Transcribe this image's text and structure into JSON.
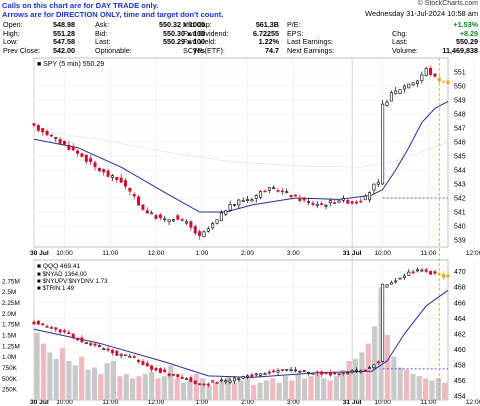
{
  "note": {
    "line1": "Calls on this chart are for DAY TRADE only.",
    "line2": "Arrows are for DIRECTION ONLY, time and target don't count."
  },
  "brand": "© StockCharts.com",
  "datetime": "Wednesday 31-Jul-2024 10:58 am",
  "quote": {
    "col1": [
      [
        "Open:",
        "548.98"
      ],
      [
        "High:",
        "551.28"
      ],
      [
        "Low:",
        "547.58"
      ],
      [
        "Prev Close:",
        "542.00"
      ]
    ],
    "col2": [
      [
        "Ask:",
        "550.32 x 1000"
      ],
      [
        "Bid:",
        "550.30 x 100"
      ],
      [
        "Last:",
        "550.29 x 100"
      ],
      [
        "Optionable:",
        "yes"
      ]
    ],
    "col3": [
      [
        "Mkt Cap:",
        "561.3B"
      ],
      [
        "Fwd Dividend:",
        "6.72255"
      ],
      [
        "Fwd Yield:",
        "1.22%"
      ],
      [
        "SCTR (ETF):",
        "74.7"
      ]
    ],
    "col4": [
      [
        "P/E:",
        ""
      ],
      [
        "EPS:",
        ""
      ],
      [
        "Last Earnings:",
        ""
      ],
      [
        "Next Earnings:",
        ""
      ]
    ],
    "col5": [
      [
        "",
        "+1.53%"
      ],
      [
        "Chg:",
        "+8.29"
      ],
      [
        "Last:",
        "550.29"
      ],
      [
        "Volume:",
        "11,469,838"
      ]
    ]
  },
  "chart_data": [
    {
      "type": "line",
      "title": "SPY (5 min) 550.29",
      "ylim": [
        538.5,
        552
      ],
      "yticks": [
        539,
        540,
        541,
        542,
        543,
        544,
        545,
        546,
        547,
        548,
        549,
        550,
        551
      ],
      "x_labels": [
        "30 Jul",
        "10:00",
        "11:00",
        "12:00",
        "1:00",
        "2:00",
        "3:00",
        "31 Jul",
        "10:00",
        "11:00",
        "12:00",
        "1:00",
        "2:00",
        "3:00"
      ],
      "prev_close": 542.0,
      "price_path": [
        [
          0,
          547.2
        ],
        [
          6,
          546.8
        ],
        [
          12,
          546.2
        ],
        [
          18,
          545.6
        ],
        [
          24,
          545.0
        ],
        [
          30,
          544.2
        ],
        [
          36,
          543.6
        ],
        [
          42,
          543.2
        ],
        [
          45,
          542.6
        ],
        [
          48,
          542.0
        ],
        [
          52,
          541.2
        ],
        [
          56,
          540.8
        ],
        [
          62,
          540.4
        ],
        [
          66,
          540.6
        ],
        [
          72,
          540.2
        ],
        [
          78,
          539.2
        ],
        [
          82,
          539.8
        ],
        [
          86,
          540.4
        ],
        [
          90,
          541.2
        ],
        [
          96,
          541.8
        ],
        [
          102,
          542.0
        ],
        [
          108,
          542.6
        ],
        [
          114,
          542.6
        ],
        [
          120,
          542.2
        ],
        [
          126,
          541.8
        ],
        [
          130,
          541.6
        ],
        [
          136,
          541.6
        ],
        [
          142,
          541.9
        ],
        [
          148,
          541.7
        ],
        [
          154,
          542.0
        ],
        [
          158,
          542.9
        ],
        [
          160,
          543.0
        ],
        [
          162,
          548.6
        ],
        [
          166,
          549.4
        ],
        [
          170,
          549.8
        ],
        [
          174,
          550.2
        ],
        [
          178,
          550.4
        ],
        [
          182,
          551.2
        ],
        [
          186,
          550.6
        ],
        [
          190,
          550.3
        ]
      ],
      "ma_fast": [
        [
          0,
          546.2
        ],
        [
          20,
          545.6
        ],
        [
          40,
          544.2
        ],
        [
          60,
          542.4
        ],
        [
          76,
          541.0
        ],
        [
          88,
          541.0
        ],
        [
          100,
          541.5
        ],
        [
          120,
          542.0
        ],
        [
          140,
          541.9
        ],
        [
          155,
          542.2
        ],
        [
          160,
          542.6
        ],
        [
          166,
          544.0
        ],
        [
          172,
          545.6
        ],
        [
          178,
          547.4
        ],
        [
          184,
          548.4
        ],
        [
          190,
          548.9
        ]
      ],
      "ma_slow": [
        [
          0,
          546.8
        ],
        [
          30,
          546.2
        ],
        [
          60,
          545.3
        ],
        [
          90,
          544.6
        ],
        [
          120,
          544.3
        ],
        [
          150,
          544.2
        ],
        [
          165,
          544.6
        ],
        [
          180,
          545.4
        ],
        [
          190,
          546.0
        ]
      ]
    },
    {
      "type": "line",
      "title": "QQQ 469.41",
      "ylim": [
        453.5,
        471.5
      ],
      "yticks": [
        454,
        456,
        458,
        460,
        462,
        464,
        466,
        468,
        470
      ],
      "breadth_labels": [
        [
          "$NYAD",
          "1364.00"
        ],
        [
          "$NYUPV:$NYDNV",
          "1.73"
        ],
        [
          "$TRIN",
          "1.49"
        ]
      ],
      "volume_ticks": [
        "2.75M",
        "2.5M",
        "2.25M",
        "2.0M",
        "1.75M",
        "1.5M",
        "1.25M",
        "1.0M",
        "750K",
        "500K",
        "250K"
      ],
      "prev_close": 457.5,
      "price_path": [
        [
          0,
          463.6
        ],
        [
          8,
          463.0
        ],
        [
          16,
          462.2
        ],
        [
          24,
          461.0
        ],
        [
          32,
          460.2
        ],
        [
          40,
          459.4
        ],
        [
          48,
          458.8
        ],
        [
          56,
          457.6
        ],
        [
          64,
          456.8
        ],
        [
          72,
          456.2
        ],
        [
          78,
          455.4
        ],
        [
          84,
          455.8
        ],
        [
          92,
          456.0
        ],
        [
          100,
          456.6
        ],
        [
          108,
          457.0
        ],
        [
          116,
          457.4
        ],
        [
          124,
          457.2
        ],
        [
          132,
          457.0
        ],
        [
          140,
          456.8
        ],
        [
          148,
          457.1
        ],
        [
          154,
          457.4
        ],
        [
          158,
          458.2
        ],
        [
          160,
          458.3
        ],
        [
          162,
          468.2
        ],
        [
          168,
          469.0
        ],
        [
          174,
          469.8
        ],
        [
          180,
          470.3
        ],
        [
          184,
          469.8
        ],
        [
          190,
          469.4
        ]
      ],
      "ma_fast": [
        [
          0,
          462.6
        ],
        [
          30,
          460.8
        ],
        [
          60,
          458.4
        ],
        [
          80,
          456.6
        ],
        [
          100,
          456.4
        ],
        [
          130,
          457.0
        ],
        [
          155,
          457.2
        ],
        [
          162,
          458.5
        ],
        [
          170,
          462.0
        ],
        [
          180,
          465.6
        ],
        [
          190,
          467.6
        ]
      ],
      "volume": [
        1.55,
        1.3,
        1.1,
        0.95,
        1.2,
        0.9,
        0.8,
        1.0,
        0.7,
        0.75,
        0.6,
        0.85,
        0.9,
        0.55,
        0.6,
        0.5,
        0.55,
        0.6,
        0.65,
        0.5,
        0.55,
        0.8,
        0.5,
        0.4,
        0.45,
        0.6,
        0.5,
        0.35,
        0.4,
        0.45,
        0.55,
        0.4,
        0.45,
        0.5,
        0.35,
        0.4,
        0.45,
        0.5,
        0.4,
        0.55,
        0.45,
        0.6,
        0.5,
        0.55,
        0.6,
        0.5,
        0.45,
        0.55,
        0.7,
        0.9,
        0.95,
        1.1,
        1.3,
        1.7,
        2.6,
        1.5,
        1.0,
        0.75,
        0.7,
        0.6,
        0.55,
        0.5,
        0.45,
        0.5,
        0.4
      ]
    }
  ]
}
